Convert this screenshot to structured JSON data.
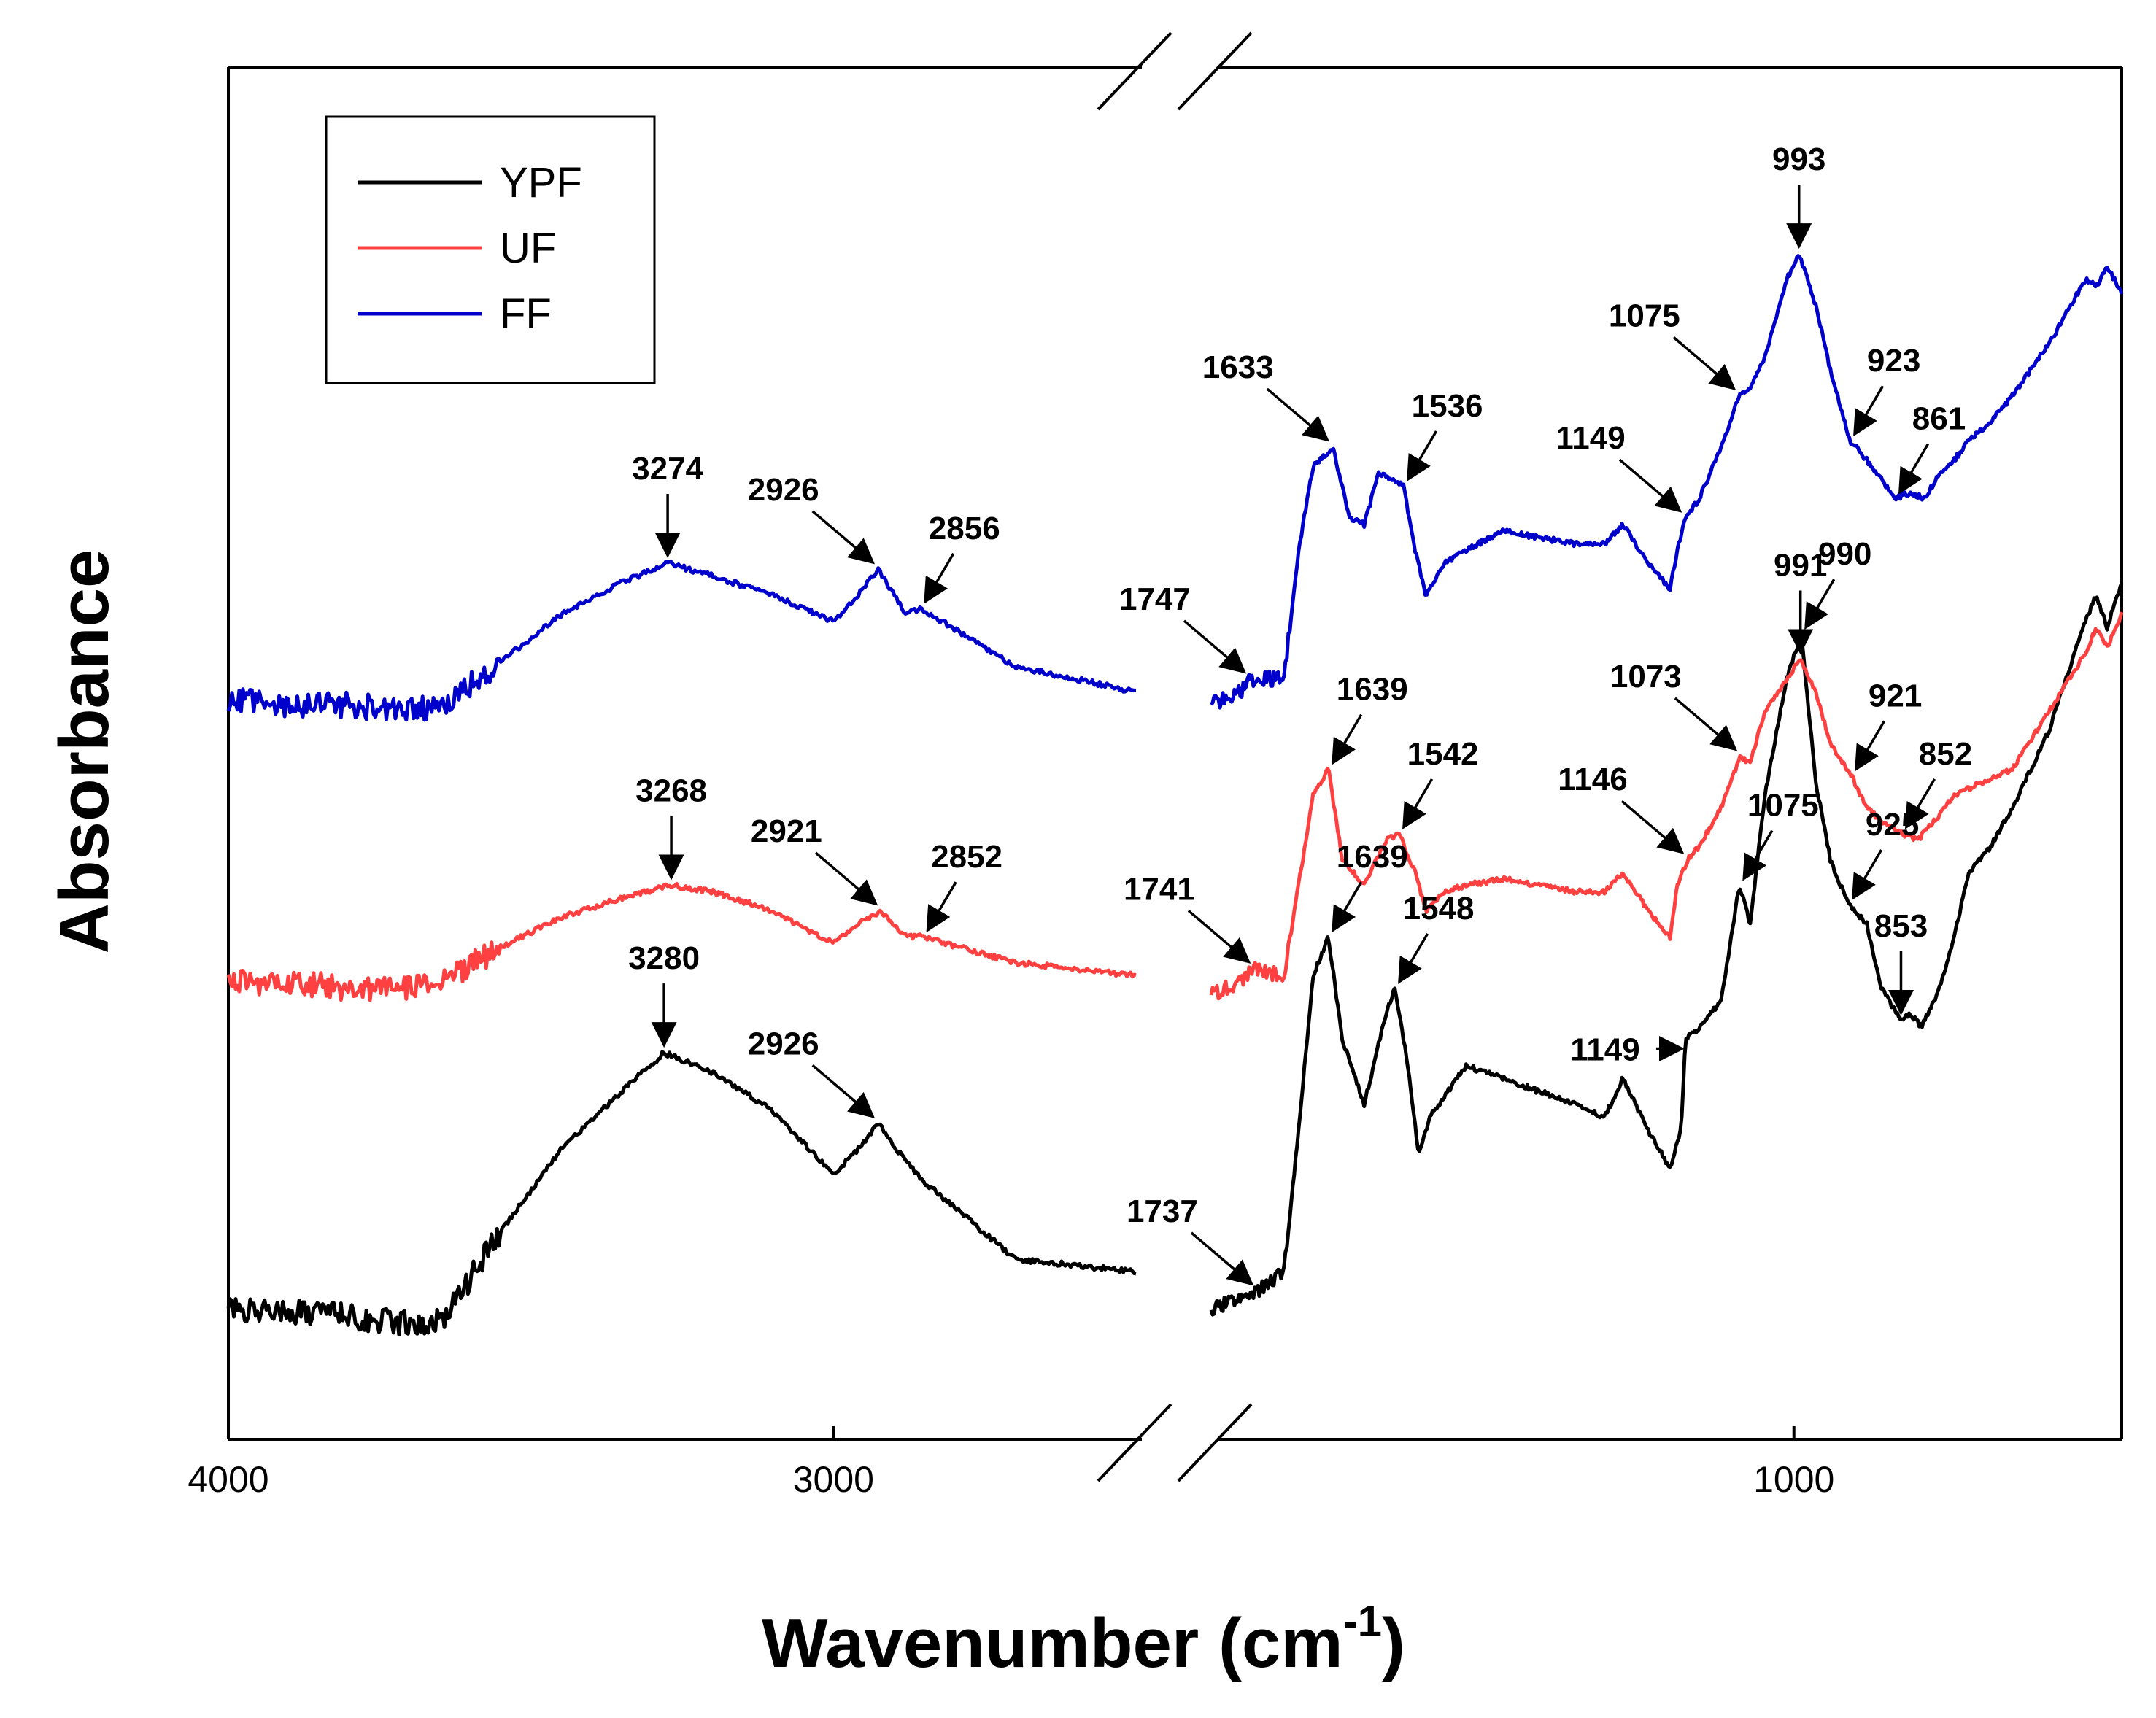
{
  "chart_data": {
    "type": "line",
    "xlabel": "Wavenumber (cm",
    "xlabel_sup": "-1",
    "xlabel_close": ")",
    "ylabel": "Absorbance",
    "x_reversed": true,
    "axis_break": "between 2500 and 1800 cm-1",
    "segments": [
      {
        "xlim": [
          4000,
          2500
        ]
      },
      {
        "xlim": [
          1800,
          550
        ]
      }
    ],
    "x_ticks": [
      "4000",
      "3000",
      "1000"
    ],
    "legend": {
      "placement": "top-left"
    },
    "series": [
      {
        "name": "YPF",
        "color": "#000000",
        "points": [
          [
            4000,
            0.02
          ],
          [
            3900,
            0.02
          ],
          [
            3800,
            0.01
          ],
          [
            3700,
            0.0
          ],
          [
            3640,
            0.01
          ],
          [
            3560,
            0.13
          ],
          [
            3450,
            0.27
          ],
          [
            3350,
            0.36
          ],
          [
            3280,
            0.42
          ],
          [
            3200,
            0.39
          ],
          [
            3100,
            0.33
          ],
          [
            3000,
            0.23
          ],
          [
            2960,
            0.27
          ],
          [
            2926,
            0.31
          ],
          [
            2880,
            0.25
          ],
          [
            2850,
            0.22
          ],
          [
            2700,
            0.1
          ],
          [
            2500,
            0.08
          ],
          [
            1800,
            0.02
          ],
          [
            1760,
            0.04
          ],
          [
            1737,
            0.05
          ],
          [
            1700,
            0.08
          ],
          [
            1680,
            0.3
          ],
          [
            1660,
            0.54
          ],
          [
            1639,
            0.6
          ],
          [
            1620,
            0.44
          ],
          [
            1590,
            0.34
          ],
          [
            1560,
            0.48
          ],
          [
            1548,
            0.52
          ],
          [
            1530,
            0.4
          ],
          [
            1515,
            0.26
          ],
          [
            1500,
            0.32
          ],
          [
            1450,
            0.4
          ],
          [
            1400,
            0.38
          ],
          [
            1350,
            0.36
          ],
          [
            1300,
            0.34
          ],
          [
            1260,
            0.32
          ],
          [
            1235,
            0.38
          ],
          [
            1200,
            0.3
          ],
          [
            1170,
            0.24
          ],
          [
            1155,
            0.3
          ],
          [
            1149,
            0.44
          ],
          [
            1130,
            0.46
          ],
          [
            1100,
            0.5
          ],
          [
            1075,
            0.68
          ],
          [
            1060,
            0.62
          ],
          [
            1040,
            0.82
          ],
          [
            1010,
            1.0
          ],
          [
            990,
            1.07
          ],
          [
            970,
            0.84
          ],
          [
            950,
            0.72
          ],
          [
            925,
            0.65
          ],
          [
            900,
            0.62
          ],
          [
            880,
            0.52
          ],
          [
            853,
            0.47
          ],
          [
            840,
            0.48
          ],
          [
            825,
            0.46
          ],
          [
            800,
            0.52
          ],
          [
            780,
            0.6
          ],
          [
            760,
            0.7
          ],
          [
            730,
            0.74
          ],
          [
            700,
            0.8
          ],
          [
            650,
            0.92
          ],
          [
            600,
            1.09
          ],
          [
            585,
            1.13
          ],
          [
            570,
            1.08
          ],
          [
            550,
            1.15
          ]
        ]
      },
      {
        "name": "UF",
        "color": "#ff4040",
        "points": [
          [
            4000,
            0.53
          ],
          [
            3900,
            0.53
          ],
          [
            3800,
            0.52
          ],
          [
            3700,
            0.52
          ],
          [
            3640,
            0.53
          ],
          [
            3560,
            0.58
          ],
          [
            3450,
            0.63
          ],
          [
            3350,
            0.66
          ],
          [
            3268,
            0.68
          ],
          [
            3200,
            0.67
          ],
          [
            3100,
            0.64
          ],
          [
            3000,
            0.59
          ],
          [
            2960,
            0.62
          ],
          [
            2921,
            0.64
          ],
          [
            2880,
            0.6
          ],
          [
            2852,
            0.6
          ],
          [
            2700,
            0.56
          ],
          [
            2500,
            0.54
          ],
          [
            1800,
            0.51
          ],
          [
            1760,
            0.53
          ],
          [
            1741,
            0.55
          ],
          [
            1700,
            0.54
          ],
          [
            1680,
            0.68
          ],
          [
            1660,
            0.82
          ],
          [
            1639,
            0.86
          ],
          [
            1620,
            0.72
          ],
          [
            1590,
            0.68
          ],
          [
            1560,
            0.75
          ],
          [
            1542,
            0.76
          ],
          [
            1520,
            0.7
          ],
          [
            1505,
            0.64
          ],
          [
            1480,
            0.67
          ],
          [
            1450,
            0.68
          ],
          [
            1400,
            0.69
          ],
          [
            1350,
            0.68
          ],
          [
            1300,
            0.67
          ],
          [
            1260,
            0.67
          ],
          [
            1235,
            0.7
          ],
          [
            1200,
            0.64
          ],
          [
            1170,
            0.6
          ],
          [
            1160,
            0.68
          ],
          [
            1146,
            0.72
          ],
          [
            1130,
            0.74
          ],
          [
            1100,
            0.8
          ],
          [
            1073,
            0.88
          ],
          [
            1060,
            0.87
          ],
          [
            1040,
            0.95
          ],
          [
            1010,
            1.0
          ],
          [
            991,
            1.03
          ],
          [
            970,
            0.98
          ],
          [
            950,
            0.9
          ],
          [
            921,
            0.85
          ],
          [
            900,
            0.8
          ],
          [
            880,
            0.78
          ],
          [
            852,
            0.76
          ],
          [
            830,
            0.75
          ],
          [
            800,
            0.79
          ],
          [
            780,
            0.82
          ],
          [
            740,
            0.84
          ],
          [
            700,
            0.86
          ],
          [
            650,
            0.95
          ],
          [
            600,
            1.04
          ],
          [
            585,
            1.08
          ],
          [
            570,
            1.05
          ],
          [
            550,
            1.1
          ]
        ]
      },
      {
        "name": "FF",
        "color": "#0000cc",
        "points": [
          [
            4000,
            0.97
          ],
          [
            3900,
            0.96
          ],
          [
            3800,
            0.96
          ],
          [
            3700,
            0.95
          ],
          [
            3640,
            0.96
          ],
          [
            3560,
            1.02
          ],
          [
            3450,
            1.1
          ],
          [
            3350,
            1.15
          ],
          [
            3274,
            1.18
          ],
          [
            3200,
            1.16
          ],
          [
            3100,
            1.13
          ],
          [
            3000,
            1.09
          ],
          [
            2960,
            1.13
          ],
          [
            2926,
            1.17
          ],
          [
            2880,
            1.1
          ],
          [
            2856,
            1.11
          ],
          [
            2700,
            1.02
          ],
          [
            2500,
            0.98
          ],
          [
            1800,
            0.96
          ],
          [
            1760,
            0.98
          ],
          [
            1747,
            1.0
          ],
          [
            1700,
            1.0
          ],
          [
            1680,
            1.2
          ],
          [
            1660,
            1.33
          ],
          [
            1633,
            1.36
          ],
          [
            1610,
            1.25
          ],
          [
            1590,
            1.24
          ],
          [
            1570,
            1.32
          ],
          [
            1536,
            1.3
          ],
          [
            1520,
            1.2
          ],
          [
            1505,
            1.13
          ],
          [
            1480,
            1.18
          ],
          [
            1450,
            1.2
          ],
          [
            1400,
            1.23
          ],
          [
            1350,
            1.22
          ],
          [
            1300,
            1.21
          ],
          [
            1260,
            1.21
          ],
          [
            1235,
            1.24
          ],
          [
            1200,
            1.18
          ],
          [
            1170,
            1.14
          ],
          [
            1160,
            1.2
          ],
          [
            1149,
            1.25
          ],
          [
            1130,
            1.28
          ],
          [
            1100,
            1.36
          ],
          [
            1075,
            1.44
          ],
          [
            1060,
            1.45
          ],
          [
            1040,
            1.5
          ],
          [
            1010,
            1.62
          ],
          [
            993,
            1.66
          ],
          [
            970,
            1.58
          ],
          [
            950,
            1.48
          ],
          [
            923,
            1.37
          ],
          [
            900,
            1.34
          ],
          [
            880,
            1.31
          ],
          [
            861,
            1.28
          ],
          [
            840,
            1.29
          ],
          [
            820,
            1.28
          ],
          [
            800,
            1.32
          ],
          [
            780,
            1.34
          ],
          [
            760,
            1.37
          ],
          [
            730,
            1.4
          ],
          [
            700,
            1.44
          ],
          [
            650,
            1.52
          ],
          [
            620,
            1.58
          ],
          [
            600,
            1.62
          ],
          [
            585,
            1.61
          ],
          [
            570,
            1.64
          ],
          [
            550,
            1.6
          ]
        ]
      }
    ],
    "annotations": [
      {
        "series": "FF",
        "x": 3274,
        "text": "3274",
        "dir": "down"
      },
      {
        "series": "FF",
        "x": 2926,
        "text": "2926",
        "dir": "diag"
      },
      {
        "series": "FF",
        "x": 2856,
        "text": "2856",
        "dir": "diag-up"
      },
      {
        "series": "FF",
        "x": 1747,
        "text": "1747",
        "dir": "diag"
      },
      {
        "series": "FF",
        "x": 1633,
        "text": "1633",
        "dir": "diag"
      },
      {
        "series": "FF",
        "x": 1536,
        "text": "1536",
        "dir": "diag-up"
      },
      {
        "series": "FF",
        "x": 1149,
        "text": "1149",
        "dir": "diag"
      },
      {
        "series": "FF",
        "x": 1075,
        "text": "1075",
        "dir": "diag"
      },
      {
        "series": "FF",
        "x": 993,
        "text": "993",
        "dir": "down"
      },
      {
        "series": "FF",
        "x": 923,
        "text": "923",
        "dir": "diag-up"
      },
      {
        "series": "FF",
        "x": 861,
        "text": "861",
        "dir": "diag-up"
      },
      {
        "series": "UF",
        "x": 3268,
        "text": "3268",
        "dir": "down"
      },
      {
        "series": "UF",
        "x": 2921,
        "text": "2921",
        "dir": "diag"
      },
      {
        "series": "UF",
        "x": 2852,
        "text": "2852",
        "dir": "diag-up"
      },
      {
        "series": "UF",
        "x": 1741,
        "text": "1741",
        "dir": "diag"
      },
      {
        "series": "UF",
        "x": 1639,
        "text": "1639",
        "dir": "diag-up"
      },
      {
        "series": "UF",
        "x": 1542,
        "text": "1542",
        "dir": "diag-up"
      },
      {
        "series": "UF",
        "x": 1146,
        "text": "1146",
        "dir": "diag"
      },
      {
        "series": "UF",
        "x": 1073,
        "text": "1073",
        "dir": "diag"
      },
      {
        "series": "UF",
        "x": 991,
        "text": "991",
        "dir": "down"
      },
      {
        "series": "UF",
        "x": 921,
        "text": "921",
        "dir": "diag-up"
      },
      {
        "series": "UF",
        "x": 852,
        "text": "852",
        "dir": "diag-up"
      },
      {
        "series": "YPF",
        "x": 3280,
        "text": "3280",
        "dir": "down"
      },
      {
        "series": "YPF",
        "x": 2926,
        "text": "2926",
        "dir": "diag"
      },
      {
        "series": "YPF",
        "x": 1737,
        "text": "1737",
        "dir": "diag"
      },
      {
        "series": "YPF",
        "x": 1639,
        "text": "1639",
        "dir": "diag-up"
      },
      {
        "series": "YPF",
        "x": 1548,
        "text": "1548",
        "dir": "diag-up"
      },
      {
        "series": "YPF",
        "x": 1149,
        "text": "1149",
        "dir": "right"
      },
      {
        "series": "YPF",
        "x": 1075,
        "text": "1075",
        "dir": "diag-up"
      },
      {
        "series": "YPF",
        "x": 990,
        "text": "990",
        "dir": "diag-up"
      },
      {
        "series": "YPF",
        "x": 925,
        "text": "925",
        "dir": "diag-up"
      },
      {
        "series": "YPF",
        "x": 853,
        "text": "853",
        "dir": "down"
      }
    ]
  }
}
